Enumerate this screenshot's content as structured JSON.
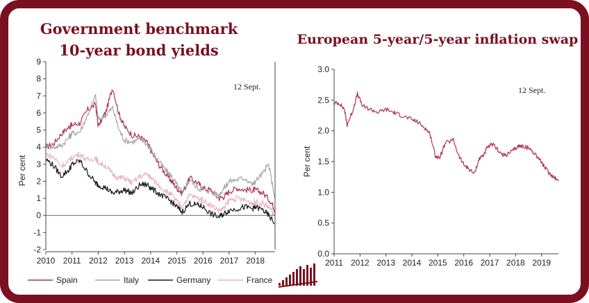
{
  "colors": {
    "frame": "#7a1020",
    "title": "#7a1020",
    "spain": "#b1325a",
    "italy": "#a6a6a6",
    "germany": "#1a1a1a",
    "france": "#e8b4c2",
    "swap": "#b1325a"
  },
  "chart_data": [
    {
      "type": "line",
      "title": "Government benchmark",
      "subtitle": "10-year bond yields",
      "ylabel": "Per cent",
      "ylim": [
        -2,
        9
      ],
      "yticks": [
        "-2",
        "-1",
        "0",
        "1",
        "2",
        "3",
        "4",
        "5",
        "6",
        "7",
        "8",
        "9"
      ],
      "xlim": [
        2010,
        2018.75
      ],
      "xticks": [
        "2010",
        "2011",
        "2012",
        "2013",
        "2014",
        "2015",
        "2016",
        "2017",
        "2018"
      ],
      "annotation": "12 Sept.",
      "legend": "bottom",
      "series": [
        {
          "name": "Spain",
          "color_key": "spain",
          "x": [
            2010.0,
            2010.3,
            2010.6,
            2010.9,
            2011.0,
            2011.3,
            2011.6,
            2011.9,
            2012.0,
            2012.3,
            2012.55,
            2012.8,
            2013.0,
            2013.3,
            2013.6,
            2013.9,
            2014.0,
            2014.3,
            2014.6,
            2014.8,
            2015.0,
            2015.2,
            2015.5,
            2015.8,
            2016.0,
            2016.3,
            2016.6,
            2016.8,
            2017.0,
            2017.3,
            2017.6,
            2017.9,
            2018.0,
            2018.3,
            2018.6,
            2018.75
          ],
          "y": [
            4.0,
            4.2,
            4.8,
            5.2,
            5.3,
            5.4,
            6.2,
            6.5,
            5.2,
            6.1,
            7.5,
            5.9,
            5.2,
            4.7,
            4.6,
            4.2,
            3.8,
            3.0,
            2.4,
            2.0,
            1.6,
            1.3,
            2.2,
            1.9,
            1.6,
            1.5,
            1.0,
            1.1,
            1.4,
            1.6,
            1.5,
            1.5,
            1.5,
            1.3,
            0.8,
            0.3
          ]
        },
        {
          "name": "Italy",
          "color_key": "italy",
          "x": [
            2010.0,
            2010.3,
            2010.6,
            2010.9,
            2011.0,
            2011.3,
            2011.6,
            2011.9,
            2012.0,
            2012.3,
            2012.55,
            2012.8,
            2013.0,
            2013.3,
            2013.6,
            2013.9,
            2014.0,
            2014.3,
            2014.6,
            2014.8,
            2015.0,
            2015.2,
            2015.5,
            2015.8,
            2016.0,
            2016.3,
            2016.6,
            2016.8,
            2017.0,
            2017.3,
            2017.6,
            2017.9,
            2018.0,
            2018.3,
            2018.5,
            2018.75
          ],
          "y": [
            4.1,
            4.0,
            4.1,
            4.6,
            4.8,
            4.9,
            5.9,
            7.0,
            5.6,
            5.9,
            6.3,
            5.0,
            4.4,
            4.3,
            4.5,
            4.1,
            3.9,
            3.2,
            2.6,
            2.3,
            1.8,
            1.3,
            2.1,
            1.6,
            1.5,
            1.4,
            1.2,
            1.6,
            2.0,
            2.1,
            2.2,
            1.8,
            2.0,
            2.5,
            3.0,
            1.0
          ]
        },
        {
          "name": "Germany",
          "color_key": "germany",
          "x": [
            2010.0,
            2010.3,
            2010.6,
            2010.9,
            2011.0,
            2011.3,
            2011.6,
            2011.9,
            2012.0,
            2012.3,
            2012.55,
            2012.8,
            2013.0,
            2013.3,
            2013.6,
            2013.9,
            2014.0,
            2014.3,
            2014.6,
            2014.8,
            2015.0,
            2015.2,
            2015.5,
            2015.8,
            2016.0,
            2016.3,
            2016.6,
            2016.8,
            2017.0,
            2017.3,
            2017.6,
            2017.9,
            2018.0,
            2018.3,
            2018.5,
            2018.75
          ],
          "y": [
            3.3,
            2.9,
            2.3,
            2.7,
            3.0,
            3.2,
            2.5,
            1.9,
            1.8,
            1.6,
            1.3,
            1.4,
            1.5,
            1.3,
            1.8,
            1.8,
            1.6,
            1.3,
            1.0,
            0.8,
            0.5,
            0.2,
            0.7,
            0.6,
            0.5,
            0.1,
            -0.1,
            0.1,
            0.3,
            0.4,
            0.5,
            0.4,
            0.5,
            0.3,
            0.0,
            -0.5
          ]
        },
        {
          "name": "France",
          "color_key": "france",
          "x": [
            2010.0,
            2010.3,
            2010.6,
            2010.9,
            2011.0,
            2011.3,
            2011.6,
            2011.9,
            2012.0,
            2012.3,
            2012.55,
            2012.8,
            2013.0,
            2013.3,
            2013.6,
            2013.9,
            2014.0,
            2014.3,
            2014.6,
            2014.8,
            2015.0,
            2015.2,
            2015.5,
            2015.8,
            2016.0,
            2016.3,
            2016.6,
            2016.8,
            2017.0,
            2017.3,
            2017.6,
            2017.9,
            2018.0,
            2018.3,
            2018.5,
            2018.75
          ],
          "y": [
            3.6,
            3.4,
            2.9,
            3.2,
            3.4,
            3.6,
            3.2,
            3.4,
            3.1,
            2.9,
            2.4,
            2.2,
            2.2,
            1.9,
            2.3,
            2.4,
            2.2,
            1.8,
            1.4,
            1.2,
            0.8,
            0.5,
            1.2,
            1.0,
            0.9,
            0.6,
            0.3,
            0.4,
            0.9,
            1.0,
            0.9,
            0.7,
            0.8,
            0.7,
            0.5,
            0.0
          ]
        }
      ]
    },
    {
      "type": "line",
      "title": "European 5-year/5-year inflation swap",
      "ylabel": "Per cent",
      "ylim": [
        0.0,
        3.0
      ],
      "yticks": [
        "0.0",
        "0.5",
        "1.0",
        "1.5",
        "2.0",
        "2.5",
        "3.0"
      ],
      "xlim": [
        2011,
        2019.65
      ],
      "xticks": [
        "2011",
        "2012",
        "2013",
        "2014",
        "2015",
        "2016",
        "2017",
        "2018",
        "2019"
      ],
      "annotation": "12 Sept.",
      "series": [
        {
          "color_key": "swap",
          "x": [
            2011.0,
            2011.2,
            2011.4,
            2011.5,
            2011.7,
            2011.9,
            2012.1,
            2012.4,
            2012.7,
            2013.0,
            2013.3,
            2013.6,
            2013.9,
            2014.2,
            2014.5,
            2014.7,
            2014.9,
            2015.05,
            2015.3,
            2015.6,
            2015.8,
            2016.0,
            2016.2,
            2016.4,
            2016.6,
            2016.75,
            2016.9,
            2017.1,
            2017.3,
            2017.5,
            2017.7,
            2017.9,
            2018.1,
            2018.3,
            2018.5,
            2018.7,
            2018.9,
            2019.1,
            2019.3,
            2019.5,
            2019.65
          ],
          "y": [
            2.45,
            2.45,
            2.35,
            2.1,
            2.3,
            2.6,
            2.4,
            2.35,
            2.3,
            2.35,
            2.3,
            2.25,
            2.2,
            2.15,
            2.05,
            1.95,
            1.6,
            1.55,
            1.8,
            1.85,
            1.6,
            1.45,
            1.38,
            1.3,
            1.55,
            1.6,
            1.72,
            1.78,
            1.7,
            1.6,
            1.62,
            1.68,
            1.75,
            1.75,
            1.72,
            1.65,
            1.55,
            1.42,
            1.3,
            1.25,
            1.18
          ]
        }
      ]
    }
  ]
}
